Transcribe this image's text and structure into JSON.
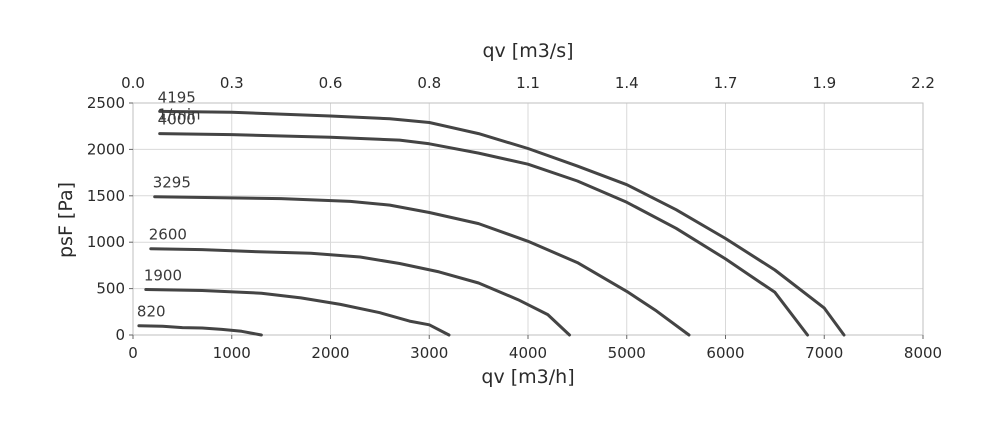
{
  "chart_data": {
    "type": "line",
    "xlabel": "qv [m3/h]",
    "x2label": "qv [m3/s]",
    "ylabel": "psF [Pa]",
    "xlim": [
      0,
      8000
    ],
    "ylim": [
      0,
      2500
    ],
    "grid": true,
    "xticks": [
      "0",
      "1000",
      "2000",
      "3000",
      "4000",
      "5000",
      "6000",
      "7000",
      "8000"
    ],
    "yticks": [
      "0",
      "500",
      "1000",
      "1500",
      "2000",
      "2500"
    ],
    "x2ticks": [
      {
        "label": "0.0",
        "at": 0
      },
      {
        "label": "0.3",
        "at": 1000
      },
      {
        "label": "0.6",
        "at": 2000
      },
      {
        "label": "0.8",
        "at": 3000
      },
      {
        "label": "1.1",
        "at": 4000
      },
      {
        "label": "1.4",
        "at": 5000
      },
      {
        "label": "1.7",
        "at": 6000
      },
      {
        "label": "1.9",
        "at": 7000
      },
      {
        "label": "2.2",
        "at": 8000
      }
    ],
    "series": [
      {
        "name": "4195",
        "unit": "1/min",
        "points": [
          [
            270,
            2410
          ],
          [
            1000,
            2400
          ],
          [
            2000,
            2360
          ],
          [
            2600,
            2330
          ],
          [
            3000,
            2290
          ],
          [
            3500,
            2170
          ],
          [
            4000,
            2010
          ],
          [
            4500,
            1820
          ],
          [
            5000,
            1620
          ],
          [
            5500,
            1350
          ],
          [
            6000,
            1040
          ],
          [
            6500,
            700
          ],
          [
            7000,
            290
          ],
          [
            7200,
            0
          ]
        ]
      },
      {
        "name": "4000",
        "points": [
          [
            270,
            2170
          ],
          [
            1000,
            2160
          ],
          [
            2000,
            2130
          ],
          [
            2700,
            2100
          ],
          [
            3000,
            2060
          ],
          [
            3500,
            1960
          ],
          [
            4000,
            1840
          ],
          [
            4500,
            1660
          ],
          [
            5000,
            1430
          ],
          [
            5500,
            1150
          ],
          [
            6000,
            820
          ],
          [
            6500,
            460
          ],
          [
            6830,
            0
          ]
        ]
      },
      {
        "name": "3295",
        "points": [
          [
            220,
            1490
          ],
          [
            900,
            1480
          ],
          [
            1500,
            1470
          ],
          [
            2200,
            1440
          ],
          [
            2600,
            1400
          ],
          [
            3000,
            1320
          ],
          [
            3500,
            1200
          ],
          [
            4000,
            1010
          ],
          [
            4500,
            780
          ],
          [
            5000,
            470
          ],
          [
            5300,
            260
          ],
          [
            5630,
            0
          ]
        ]
      },
      {
        "name": "2600",
        "points": [
          [
            180,
            930
          ],
          [
            700,
            920
          ],
          [
            1200,
            900
          ],
          [
            1800,
            880
          ],
          [
            2300,
            840
          ],
          [
            2700,
            770
          ],
          [
            3100,
            680
          ],
          [
            3500,
            560
          ],
          [
            3900,
            380
          ],
          [
            4200,
            220
          ],
          [
            4420,
            0
          ]
        ]
      },
      {
        "name": "1900",
        "points": [
          [
            130,
            490
          ],
          [
            700,
            480
          ],
          [
            1300,
            450
          ],
          [
            1700,
            400
          ],
          [
            2100,
            330
          ],
          [
            2500,
            240
          ],
          [
            2800,
            150
          ],
          [
            3000,
            110
          ],
          [
            3200,
            0
          ]
        ]
      },
      {
        "name": "820",
        "points": [
          [
            60,
            100
          ],
          [
            300,
            95
          ],
          [
            500,
            80
          ],
          [
            700,
            75
          ],
          [
            900,
            60
          ],
          [
            1100,
            40
          ],
          [
            1300,
            0
          ]
        ]
      }
    ]
  }
}
